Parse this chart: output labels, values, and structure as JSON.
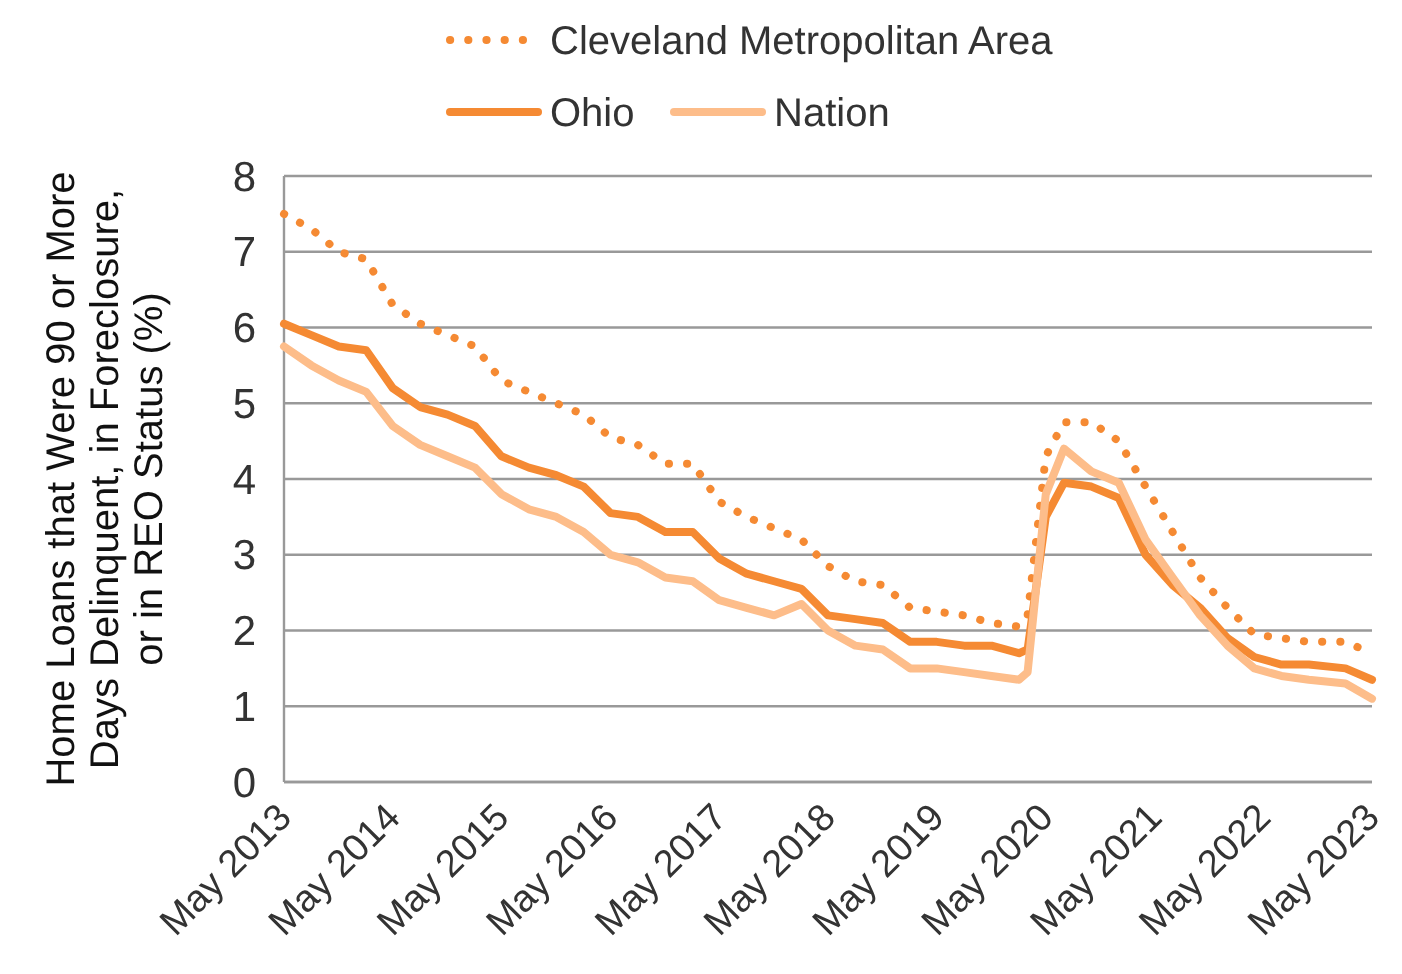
{
  "chart_data": {
    "type": "line",
    "ylabel": "Home Loans that Were 90 or More Days Delinquent, in Foreclosure, or in REO Status (%)",
    "x": [
      "2013-05",
      "2013-08",
      "2013-11",
      "2014-02",
      "2014-05",
      "2014-08",
      "2014-11",
      "2015-02",
      "2015-05",
      "2015-08",
      "2015-11",
      "2016-02",
      "2016-05",
      "2016-08",
      "2016-11",
      "2017-02",
      "2017-05",
      "2017-08",
      "2017-11",
      "2018-02",
      "2018-05",
      "2018-08",
      "2018-11",
      "2019-02",
      "2019-05",
      "2019-08",
      "2019-11",
      "2020-02",
      "2020-03",
      "2020-05",
      "2020-07",
      "2020-10",
      "2021-01",
      "2021-04",
      "2021-07",
      "2021-10",
      "2022-01",
      "2022-04",
      "2022-07",
      "2022-10",
      "2023-02",
      "2023-05"
    ],
    "series": [
      {
        "name": "Cleveland Metropolitan Area",
        "color": "#f58a33",
        "line_style": "dotted",
        "values": [
          7.5,
          7.3,
          7.0,
          6.9,
          6.3,
          6.05,
          5.9,
          5.75,
          5.3,
          5.15,
          5.0,
          4.85,
          4.55,
          4.45,
          4.2,
          4.2,
          3.7,
          3.5,
          3.35,
          3.2,
          2.85,
          2.65,
          2.6,
          2.3,
          2.25,
          2.2,
          2.1,
          2.05,
          2.2,
          4.3,
          4.75,
          4.75,
          4.5,
          3.9,
          3.3,
          2.7,
          2.3,
          1.95,
          1.9,
          1.85,
          1.85,
          1.7
        ]
      },
      {
        "name": "Ohio",
        "color": "#f58a33",
        "line_style": "solid",
        "values": [
          6.05,
          5.9,
          5.75,
          5.7,
          5.2,
          4.95,
          4.85,
          4.7,
          4.3,
          4.15,
          4.05,
          3.9,
          3.55,
          3.5,
          3.3,
          3.3,
          2.95,
          2.75,
          2.65,
          2.55,
          2.2,
          2.15,
          2.1,
          1.85,
          1.85,
          1.8,
          1.8,
          1.7,
          1.75,
          3.5,
          3.95,
          3.9,
          3.75,
          3.0,
          2.6,
          2.3,
          1.9,
          1.65,
          1.55,
          1.55,
          1.5,
          1.35
        ]
      },
      {
        "name": "Nation",
        "color": "#fdbd8a",
        "line_style": "solid",
        "values": [
          5.75,
          5.5,
          5.3,
          5.15,
          4.7,
          4.45,
          4.3,
          4.15,
          3.8,
          3.6,
          3.5,
          3.3,
          3.0,
          2.9,
          2.7,
          2.65,
          2.4,
          2.3,
          2.2,
          2.35,
          2.0,
          1.8,
          1.75,
          1.5,
          1.5,
          1.45,
          1.4,
          1.35,
          1.45,
          3.8,
          4.4,
          4.1,
          3.95,
          3.2,
          2.7,
          2.2,
          1.8,
          1.5,
          1.4,
          1.35,
          1.3,
          1.1
        ]
      }
    ],
    "xlim": [
      "2013-05",
      "2023-05"
    ],
    "xticks": [
      {
        "value": "2013-05",
        "label": "May 2013"
      },
      {
        "value": "2014-05",
        "label": "May 2014"
      },
      {
        "value": "2015-05",
        "label": "May 2015"
      },
      {
        "value": "2016-05",
        "label": "May 2016"
      },
      {
        "value": "2017-05",
        "label": "May 2017"
      },
      {
        "value": "2018-05",
        "label": "May 2018"
      },
      {
        "value": "2019-05",
        "label": "May 2019"
      },
      {
        "value": "2020-05",
        "label": "May 2020"
      },
      {
        "value": "2021-05",
        "label": "May 2021"
      },
      {
        "value": "2022-05",
        "label": "May 2022"
      },
      {
        "value": "2023-05",
        "label": "May 2023"
      }
    ],
    "ylim": [
      0,
      8
    ],
    "yticks": [
      0,
      1,
      2,
      3,
      4,
      5,
      6,
      7,
      8
    ],
    "grid": "y",
    "legend": "top"
  }
}
